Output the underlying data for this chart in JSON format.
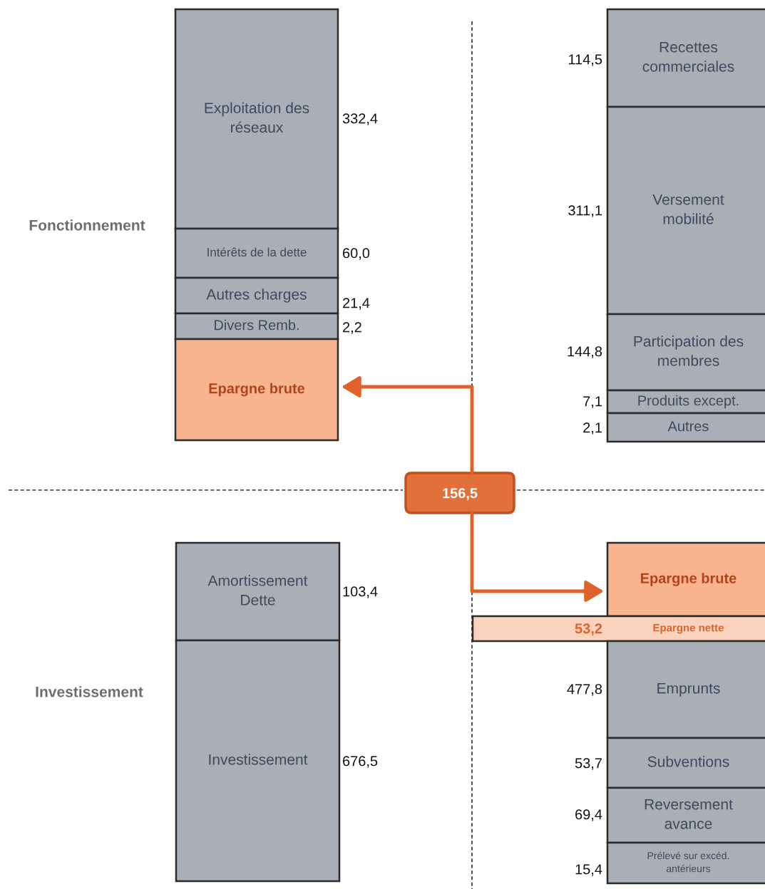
{
  "chart_data": [
    {
      "type": "other",
      "categories": [
        "Exploitation des\nréseaux",
        "Intérêts de la dette",
        "Autres charges",
        "Divers Remb.",
        "Epargne brute"
      ],
      "values": [
        332.4,
        60.0,
        21.4,
        2.2,
        null
      ],
      "value_labels": [
        "332,4",
        "60,0",
        "21,4",
        "2,2",
        null
      ],
      "data_labels": true,
      "colors": [
        "#a9afb7",
        "#a9afb7",
        "#a9afb7",
        "#a9afb7",
        "#f7b48f"
      ],
      "annotations": [
        "Fonctionnement",
        "156,5"
      ]
    },
    {
      "type": "other",
      "categories": [
        "Recettes\ncommerciales",
        "Versement\nmobilité",
        "Participation des\nmembres",
        "Produits except.",
        "Autres"
      ],
      "values": [
        114.5,
        311.1,
        144.8,
        7.1,
        2.1
      ],
      "value_labels": [
        "114,5",
        "311,1",
        "144,8",
        "7,1",
        "2,1"
      ],
      "data_labels": true,
      "colors": [
        "#a9afb7",
        "#a9afb7",
        "#a9afb7",
        "#a9afb7",
        "#a9afb7"
      ]
    },
    {
      "type": "other",
      "categories": [
        "Amortissement\nDette",
        "Investissement"
      ],
      "values": [
        103.4,
        676.5
      ],
      "value_labels": [
        "103,4",
        "676,5"
      ],
      "data_labels": true,
      "colors": [
        "#a9afb7",
        "#a9afb7"
      ],
      "annotations": [
        "Investissement"
      ]
    },
    {
      "type": "other",
      "categories": [
        "Epargne brute",
        "Epargne nette",
        "Emprunts",
        "Subventions",
        "Reversement\navance",
        "Prélevé sur excéd.\nantérieurs"
      ],
      "values": [
        null,
        53.2,
        477.8,
        53.7,
        69.4,
        15.4
      ],
      "value_labels": [
        null,
        "53,2",
        "477,8",
        "53,7",
        "69,4",
        "15,4"
      ],
      "data_labels": true,
      "colors": [
        "#f7b48f",
        "#f9d3bd",
        "#a9afb7",
        "#a9afb7",
        "#a9afb7",
        "#a9afb7"
      ]
    }
  ]
}
